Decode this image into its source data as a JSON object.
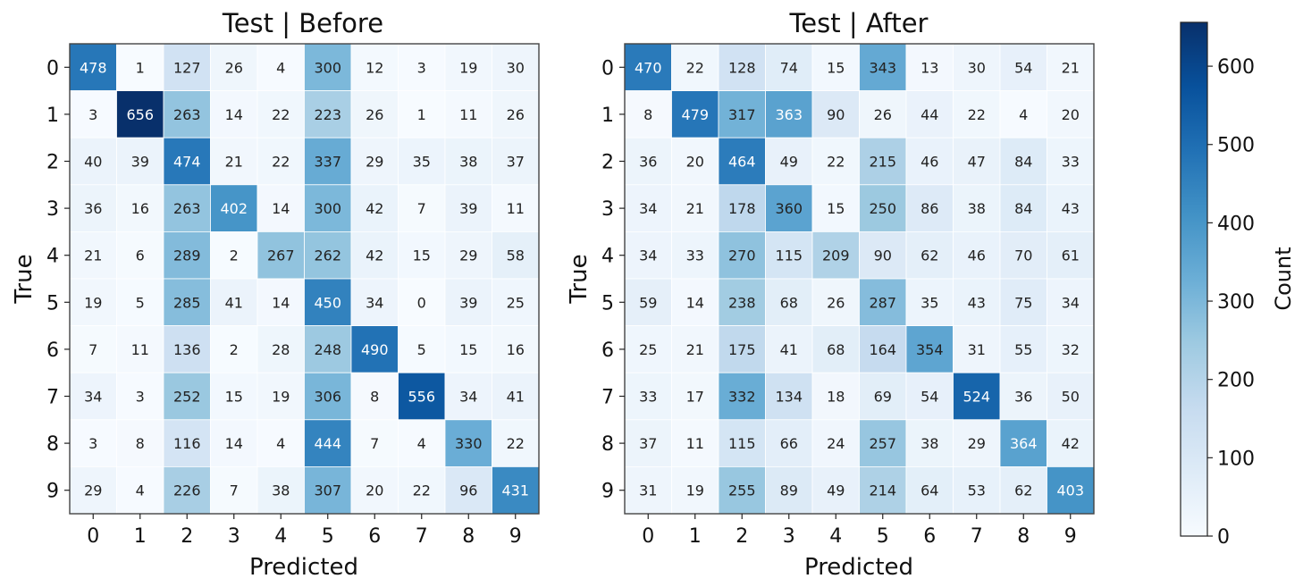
{
  "chart_data": [
    {
      "type": "heatmap",
      "title": "Test | Before",
      "xlabel": "Predicted",
      "ylabel": "True",
      "x_categories": [
        "0",
        "1",
        "2",
        "3",
        "4",
        "5",
        "6",
        "7",
        "8",
        "9"
      ],
      "y_categories": [
        "0",
        "1",
        "2",
        "3",
        "4",
        "5",
        "6",
        "7",
        "8",
        "9"
      ],
      "values": [
        [
          478,
          1,
          127,
          26,
          4,
          300,
          12,
          3,
          19,
          30
        ],
        [
          3,
          656,
          263,
          14,
          22,
          223,
          26,
          1,
          11,
          26
        ],
        [
          40,
          39,
          474,
          21,
          22,
          337,
          29,
          35,
          38,
          37
        ],
        [
          36,
          16,
          263,
          402,
          14,
          300,
          42,
          7,
          39,
          11
        ],
        [
          21,
          6,
          289,
          2,
          267,
          262,
          42,
          15,
          29,
          58
        ],
        [
          19,
          5,
          285,
          41,
          14,
          450,
          34,
          0,
          39,
          25
        ],
        [
          7,
          11,
          136,
          2,
          28,
          248,
          490,
          5,
          15,
          16
        ],
        [
          34,
          3,
          252,
          15,
          19,
          306,
          8,
          556,
          34,
          41
        ],
        [
          3,
          8,
          116,
          14,
          4,
          444,
          7,
          4,
          330,
          22
        ],
        [
          29,
          4,
          226,
          7,
          38,
          307,
          20,
          22,
          96,
          431
        ]
      ]
    },
    {
      "type": "heatmap",
      "title": "Test | After",
      "xlabel": "Predicted",
      "ylabel": "True",
      "x_categories": [
        "0",
        "1",
        "2",
        "3",
        "4",
        "5",
        "6",
        "7",
        "8",
        "9"
      ],
      "y_categories": [
        "0",
        "1",
        "2",
        "3",
        "4",
        "5",
        "6",
        "7",
        "8",
        "9"
      ],
      "values": [
        [
          470,
          22,
          128,
          74,
          15,
          343,
          13,
          30,
          54,
          21
        ],
        [
          8,
          479,
          317,
          363,
          90,
          26,
          44,
          22,
          4,
          20
        ],
        [
          36,
          20,
          464,
          49,
          22,
          215,
          46,
          47,
          84,
          33
        ],
        [
          34,
          21,
          178,
          360,
          15,
          250,
          86,
          38,
          84,
          43
        ],
        [
          34,
          33,
          270,
          115,
          209,
          90,
          62,
          46,
          70,
          61
        ],
        [
          59,
          14,
          238,
          68,
          26,
          287,
          35,
          43,
          75,
          34
        ],
        [
          25,
          21,
          175,
          41,
          68,
          164,
          354,
          31,
          55,
          32
        ],
        [
          33,
          17,
          332,
          134,
          18,
          69,
          54,
          524,
          36,
          50
        ],
        [
          37,
          11,
          115,
          66,
          24,
          257,
          38,
          29,
          364,
          42
        ],
        [
          31,
          19,
          255,
          89,
          49,
          214,
          64,
          53,
          62,
          403
        ]
      ]
    }
  ],
  "colorbar": {
    "label": "Count",
    "vmin": 0,
    "vmax": 656,
    "ticks": [
      "0",
      "100",
      "200",
      "300",
      "400",
      "500",
      "600"
    ],
    "colormap": "Blues",
    "low_color": "#f7fbff",
    "high_color": "#08306b"
  }
}
